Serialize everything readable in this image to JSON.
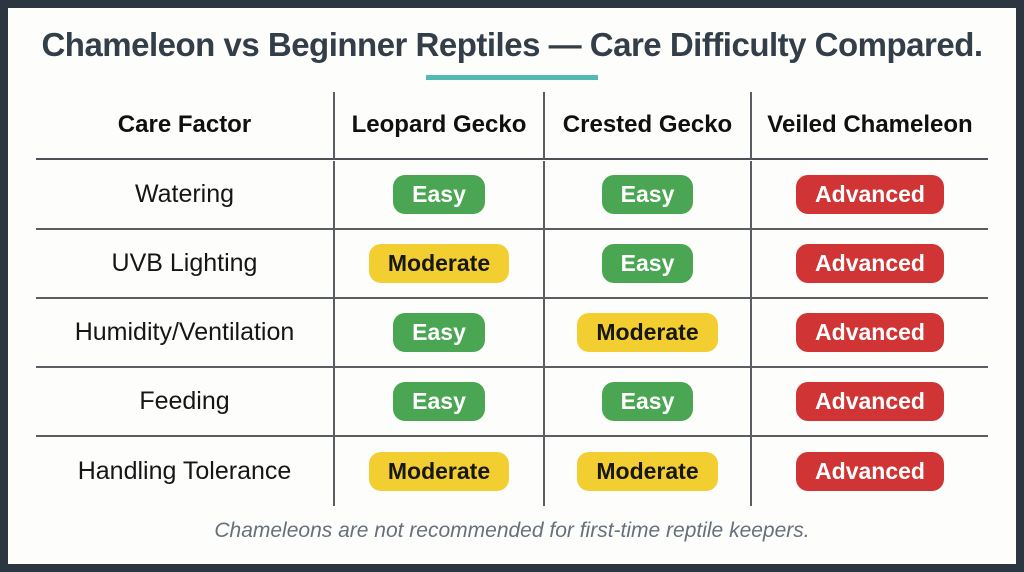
{
  "title": "Chameleon vs Beginner Reptiles — Care Difficulty Compared.",
  "accent_underline_color": "#55b8b2",
  "frame_color": "#2b3640",
  "badge_colors": {
    "easy": "#4aa653",
    "moderate": "#f2ce30",
    "advanced": "#d03434"
  },
  "footer": "Chameleons are not recommended for first-time reptile keepers.",
  "chart_data": {
    "type": "table",
    "title": "Chameleon vs Beginner Reptiles — Care Difficulty Compared.",
    "columns": [
      "Care Factor",
      "Leopard Gecko",
      "Crested Gecko",
      "Veiled Chameleon"
    ],
    "rows": [
      {
        "factor": "Watering",
        "leopard_gecko": "Easy",
        "crested_gecko": "Easy",
        "veiled_chameleon": "Advanced"
      },
      {
        "factor": "UVB Lighting",
        "leopard_gecko": "Moderate",
        "crested_gecko": "Easy",
        "veiled_chameleon": "Advanced"
      },
      {
        "factor": "Humidity/Ventilation",
        "leopard_gecko": "Easy",
        "crested_gecko": "Moderate",
        "veiled_chameleon": "Advanced"
      },
      {
        "factor": "Feeding",
        "leopard_gecko": "Easy",
        "crested_gecko": "Easy",
        "veiled_chameleon": "Advanced"
      },
      {
        "factor": "Handling Tolerance",
        "leopard_gecko": "Moderate",
        "crested_gecko": "Moderate",
        "veiled_chameleon": "Advanced"
      }
    ],
    "legend": [
      "Easy",
      "Moderate",
      "Advanced"
    ],
    "grid": true,
    "note": "Chameleons are not recommended for first-time reptile keepers."
  }
}
